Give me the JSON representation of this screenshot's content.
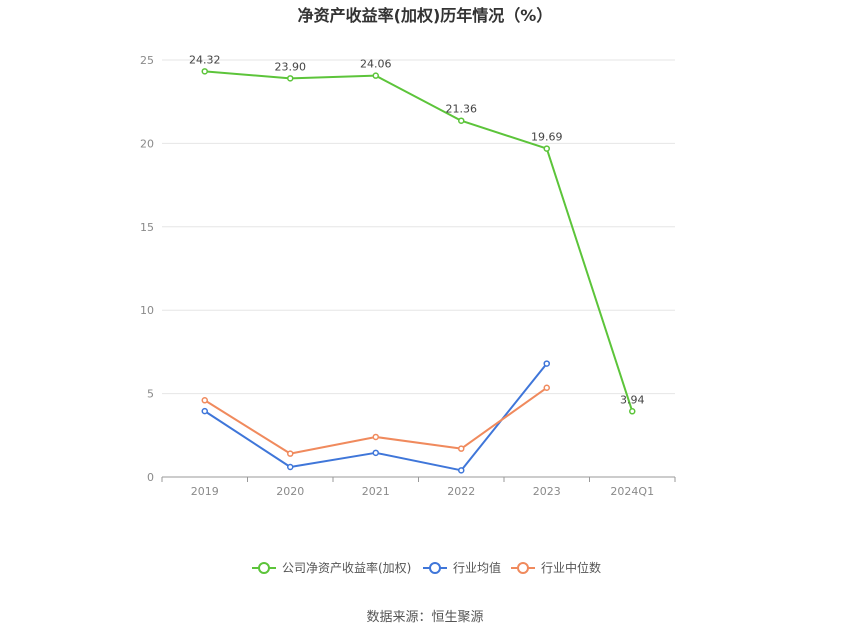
{
  "chart_data": {
    "type": "line",
    "title": "净资产收益率(加权)历年情况（%）",
    "categories": [
      "2019",
      "2020",
      "2021",
      "2022",
      "2023",
      "2024Q1"
    ],
    "ylim": [
      0,
      25
    ],
    "yticks": [
      0,
      5,
      10,
      15,
      20,
      25
    ],
    "grid": true,
    "legend_position": "bottom",
    "series": [
      {
        "name": "公司净资产收益率(加权)",
        "color": "#5cc43a",
        "values": [
          24.32,
          23.9,
          24.06,
          21.36,
          19.69,
          3.94
        ],
        "labels": [
          "24.32",
          "23.90",
          "24.06",
          "21.36",
          "19.69",
          "3.94"
        ]
      },
      {
        "name": "行业均值",
        "color": "#3f76d9",
        "values": [
          3.95,
          0.6,
          1.45,
          0.4,
          6.8,
          null
        ]
      },
      {
        "name": "行业中位数",
        "color": "#f08a5d",
        "values": [
          4.6,
          1.4,
          2.4,
          1.7,
          5.35,
          null
        ]
      }
    ],
    "source": "数据来源：恒生聚源"
  }
}
